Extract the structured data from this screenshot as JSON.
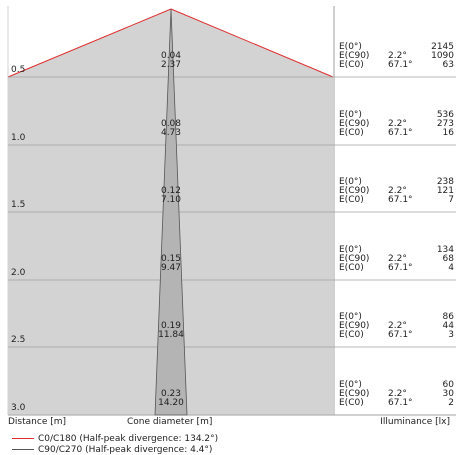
{
  "chart_data": {
    "type": "cone-diagram",
    "colors": {
      "c0_c180": "#e03030",
      "c90_c270": "#555555",
      "fill": "#d3d3d3",
      "grid": "#a0a0a0"
    },
    "rows": [
      {
        "distance": "0.5",
        "c90_diameter": "0.04",
        "c0_diameter": "2.37",
        "e0": "2145",
        "ec90": "1090",
        "ec0": "63"
      },
      {
        "distance": "1.0",
        "c90_diameter": "0.08",
        "c0_diameter": "4.73",
        "e0": "536",
        "ec90": "273",
        "ec0": "16"
      },
      {
        "distance": "1.5",
        "c90_diameter": "0.12",
        "c0_diameter": "7.10",
        "e0": "238",
        "ec90": "121",
        "ec0": "7"
      },
      {
        "distance": "2.0",
        "c90_diameter": "0.15",
        "c0_diameter": "9.47",
        "e0": "134",
        "ec90": "68",
        "ec0": "4"
      },
      {
        "distance": "2.5",
        "c90_diameter": "0.19",
        "c0_diameter": "11.84",
        "e0": "86",
        "ec90": "44",
        "ec0": "3"
      },
      {
        "distance": "3.0",
        "c90_diameter": "0.23",
        "c0_diameter": "14.20",
        "e0": "60",
        "ec90": "30",
        "ec0": "2"
      }
    ],
    "angle_c90": "2.2°",
    "angle_c0": "67.1°",
    "labels": {
      "e0": "E(0°)",
      "ec90": "E(C90)",
      "ec0": "E(C0)"
    },
    "axis": {
      "distance": "Distance [m]",
      "cone_diameter": "Cone diameter [m]",
      "illuminance": "Illuminance [lx]"
    },
    "legend": [
      {
        "label": "C0/C180 (Half-peak divergence: 134.2°)",
        "color": "#e03030"
      },
      {
        "label": "C90/C270 (Half-peak divergence: 4.4°)",
        "color": "#555555"
      }
    ]
  }
}
